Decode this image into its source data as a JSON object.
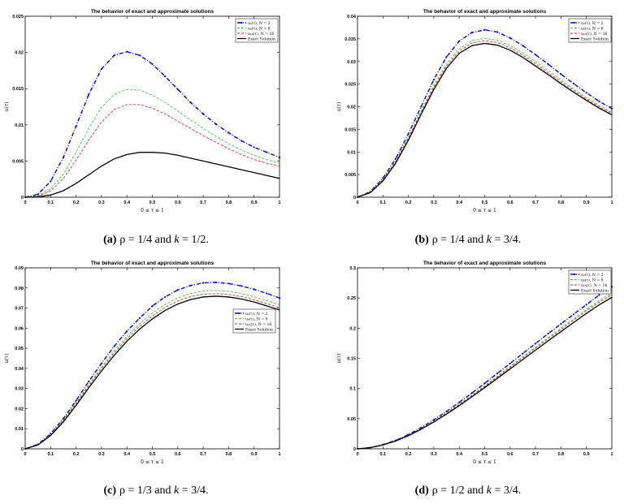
{
  "figure": {
    "captions": [
      {
        "label": "(a)",
        "text_pre": "ρ = 1/4 and ",
        "k_sym": "k",
        "text_post": " = 1/2."
      },
      {
        "label": "(b)",
        "text_pre": "ρ = 1/4 and ",
        "k_sym": "k",
        "text_post": " = 3/4."
      },
      {
        "label": "(c)",
        "text_pre": "ρ = 1/3 and ",
        "k_sym": "k",
        "text_post": " = 3/4."
      },
      {
        "label": "(d)",
        "text_pre": "ρ = 1/2 and ",
        "k_sym": "k",
        "text_post": " = 3/4."
      }
    ]
  },
  "chart_data": [
    {
      "type": "line",
      "title": "The behavior of exact and approximate solutions",
      "xlabel": "0 ≤ τ ≤ 1",
      "ylabel": "u(τ)",
      "xlim": [
        0,
        1
      ],
      "ylim": [
        0,
        0.025
      ],
      "xticks": [
        "0",
        "0.1",
        "0.2",
        "0.3",
        "0.4",
        "0.5",
        "0.6",
        "0.7",
        "0.8",
        "0.9",
        "1"
      ],
      "yticks": [
        "0",
        "0.005",
        "0.01",
        "0.015",
        "0.02",
        "0.025"
      ],
      "legend_position": "top-right",
      "x": [
        0,
        0.05,
        0.1,
        0.15,
        0.2,
        0.25,
        0.3,
        0.35,
        0.4,
        0.45,
        0.5,
        0.55,
        0.6,
        0.65,
        0.7,
        0.75,
        0.8,
        0.85,
        0.9,
        0.95,
        1
      ],
      "series": [
        {
          "name": "u₂(τ), N = 2",
          "color": "#0000ee",
          "style": "dashdot-marker",
          "values": [
            0,
            0.0004,
            0.0022,
            0.0055,
            0.0098,
            0.0142,
            0.0177,
            0.0196,
            0.0201,
            0.0196,
            0.0184,
            0.0167,
            0.0149,
            0.0131,
            0.0115,
            0.0101,
            0.0089,
            0.0078,
            0.0069,
            0.0062,
            0.0055
          ]
        },
        {
          "name": "u₈(τ), N = 8",
          "color": "#33cc33",
          "style": "dashed",
          "values": [
            0,
            0.0002,
            0.0012,
            0.0032,
            0.0062,
            0.0095,
            0.0124,
            0.0142,
            0.0149,
            0.0148,
            0.0141,
            0.0131,
            0.0119,
            0.0107,
            0.0095,
            0.0084,
            0.0074,
            0.0065,
            0.0058,
            0.0052,
            0.0047
          ]
        },
        {
          "name": "u₁₆(τ), N = 16",
          "color": "#ee2222",
          "style": "dashed",
          "values": [
            0,
            0.0001,
            0.0009,
            0.0026,
            0.0051,
            0.0079,
            0.0104,
            0.0121,
            0.0128,
            0.0128,
            0.0123,
            0.0115,
            0.0105,
            0.0095,
            0.0085,
            0.0076,
            0.0067,
            0.0059,
            0.0052,
            0.0047,
            0.0043
          ]
        },
        {
          "name": "Exact Solution",
          "color": "#000000",
          "style": "solid",
          "values": [
            0,
            5e-05,
            0.0003,
            0.0009,
            0.0019,
            0.0031,
            0.0043,
            0.0053,
            0.0059,
            0.0062,
            0.0062,
            0.0061,
            0.0058,
            0.0054,
            0.005,
            0.0046,
            0.0042,
            0.0038,
            0.0034,
            0.003,
            0.0026
          ]
        }
      ]
    },
    {
      "type": "line",
      "title": "The behavior of exact and approximate solutions",
      "xlabel": "0 ≤ τ ≤ 1",
      "ylabel": "u(τ)",
      "xlim": [
        0,
        1
      ],
      "ylim": [
        0,
        0.04
      ],
      "xticks": [
        "0",
        "0.1",
        "0.2",
        "0.3",
        "0.4",
        "0.5",
        "0.6",
        "0.7",
        "0.8",
        "0.9",
        "1"
      ],
      "yticks": [
        "0",
        "0.005",
        "0.01",
        "0.015",
        "0.02",
        "0.025",
        "0.03",
        "0.035",
        "0.04"
      ],
      "legend_position": "top-right",
      "x": [
        0,
        0.05,
        0.1,
        0.15,
        0.2,
        0.25,
        0.3,
        0.35,
        0.4,
        0.45,
        0.5,
        0.55,
        0.6,
        0.65,
        0.7,
        0.75,
        0.8,
        0.85,
        0.9,
        0.95,
        1
      ],
      "series": [
        {
          "name": "u₂(τ), N = 2",
          "color": "#0000ee",
          "style": "dashdot-marker",
          "values": [
            0,
            0.0012,
            0.0042,
            0.0085,
            0.014,
            0.02,
            0.026,
            0.031,
            0.0345,
            0.0364,
            0.037,
            0.0365,
            0.0352,
            0.0335,
            0.0315,
            0.0294,
            0.0272,
            0.0251,
            0.0231,
            0.0212,
            0.0196
          ]
        },
        {
          "name": "u₈(τ), N = 8",
          "color": "#33cc33",
          "style": "dashed",
          "values": [
            0,
            0.0011,
            0.0039,
            0.008,
            0.0132,
            0.019,
            0.0247,
            0.0295,
            0.0328,
            0.0346,
            0.0351,
            0.0347,
            0.0335,
            0.0319,
            0.03,
            0.028,
            0.0259,
            0.0239,
            0.022,
            0.0203,
            0.0188
          ]
        },
        {
          "name": "u₁₆(τ), N = 16",
          "color": "#ee2222",
          "style": "dashed",
          "values": [
            0,
            0.0011,
            0.0038,
            0.0078,
            0.013,
            0.0187,
            0.0243,
            0.029,
            0.0323,
            0.0341,
            0.0346,
            0.0342,
            0.033,
            0.0314,
            0.0295,
            0.0275,
            0.0255,
            0.0236,
            0.0217,
            0.02,
            0.0185
          ]
        },
        {
          "name": "Exact Solution",
          "color": "#000000",
          "style": "solid",
          "values": [
            0,
            0.001,
            0.0036,
            0.0075,
            0.0126,
            0.0183,
            0.0238,
            0.0285,
            0.0318,
            0.0335,
            0.034,
            0.0336,
            0.0325,
            0.0309,
            0.029,
            0.0271,
            0.0251,
            0.0232,
            0.0214,
            0.0197,
            0.0182
          ]
        }
      ]
    },
    {
      "type": "line",
      "title": "The behavior of exact and approximate solutions",
      "xlabel": "0 ≤ τ ≤ 1",
      "ylabel": "u(τ)",
      "xlim": [
        0,
        1
      ],
      "ylim": [
        0,
        0.09
      ],
      "xticks": [
        "0",
        "0.1",
        "0.2",
        "0.3",
        "0.4",
        "0.5",
        "0.6",
        "0.7",
        "0.8",
        "0.9",
        "1"
      ],
      "yticks": [
        "0",
        "0.01",
        "0.02",
        "0.03",
        "0.04",
        "0.05",
        "0.06",
        "0.07",
        "0.08",
        "0.09"
      ],
      "legend_position": "center-right",
      "x": [
        0,
        0.05,
        0.1,
        0.15,
        0.2,
        0.25,
        0.3,
        0.35,
        0.4,
        0.45,
        0.5,
        0.55,
        0.6,
        0.65,
        0.7,
        0.75,
        0.8,
        0.85,
        0.9,
        0.95,
        1
      ],
      "series": [
        {
          "name": "u₂(τ), N = 2",
          "color": "#0000ee",
          "style": "dashdot-marker",
          "values": [
            0,
            0.0022,
            0.0075,
            0.015,
            0.024,
            0.0335,
            0.0425,
            0.051,
            0.0585,
            0.065,
            0.071,
            0.0755,
            0.079,
            0.0812,
            0.0825,
            0.0828,
            0.0822,
            0.081,
            0.0793,
            0.0773,
            0.075
          ]
        },
        {
          "name": "u₈(τ), N = 8",
          "color": "#33cc33",
          "style": "dashed",
          "values": [
            0,
            0.0021,
            0.0071,
            0.0143,
            0.0229,
            0.032,
            0.0407,
            0.0488,
            0.056,
            0.0622,
            0.0675,
            0.0718,
            0.075,
            0.0772,
            0.0785,
            0.0788,
            0.0783,
            0.0772,
            0.0756,
            0.0737,
            0.0716
          ]
        },
        {
          "name": "u₁₆(τ), N = 16",
          "color": "#ee2222",
          "style": "dashed",
          "values": [
            0,
            0.002,
            0.0069,
            0.0139,
            0.0223,
            0.0312,
            0.0398,
            0.0477,
            0.0548,
            0.0609,
            0.0661,
            0.0703,
            0.0735,
            0.0757,
            0.0769,
            0.0772,
            0.0767,
            0.0757,
            0.0741,
            0.0722,
            0.0702
          ]
        },
        {
          "name": "Exact Solution",
          "color": "#000000",
          "style": "solid",
          "values": [
            0,
            0.0019,
            0.0066,
            0.0134,
            0.0216,
            0.0303,
            0.0387,
            0.0465,
            0.0535,
            0.0595,
            0.0646,
            0.0688,
            0.072,
            0.0742,
            0.0755,
            0.0759,
            0.0755,
            0.0745,
            0.073,
            0.0711,
            0.069
          ]
        }
      ]
    },
    {
      "type": "line",
      "title": "The behavior of exact and approximate solutions",
      "xlabel": "0 ≤ τ ≤ 1",
      "ylabel": "u(τ)",
      "xlim": [
        0,
        1
      ],
      "ylim": [
        0,
        0.3
      ],
      "xticks": [
        "0",
        "0.1",
        "0.2",
        "0.3",
        "0.4",
        "0.5",
        "0.6",
        "0.7",
        "0.8",
        "0.9",
        "1"
      ],
      "yticks": [
        "0",
        "0.05",
        "0.1",
        "0.15",
        "0.2",
        "0.25",
        "0.3"
      ],
      "legend_position": "top-right",
      "x": [
        0,
        0.05,
        0.1,
        0.15,
        0.2,
        0.25,
        0.3,
        0.35,
        0.4,
        0.45,
        0.5,
        0.55,
        0.6,
        0.65,
        0.7,
        0.75,
        0.8,
        0.85,
        0.9,
        0.95,
        1
      ],
      "series": [
        {
          "name": "u₂(τ), N = 2",
          "color": "#0000ee",
          "style": "dashdot-marker",
          "values": [
            0,
            0.002,
            0.007,
            0.014,
            0.0235,
            0.035,
            0.048,
            0.062,
            0.077,
            0.0925,
            0.1085,
            0.125,
            0.1415,
            0.158,
            0.1745,
            0.191,
            0.207,
            0.223,
            0.239,
            0.255,
            0.269
          ]
        },
        {
          "name": "u₈(τ), N = 8",
          "color": "#33cc33",
          "style": "dashed",
          "values": [
            0,
            0.0019,
            0.0067,
            0.0134,
            0.0225,
            0.0335,
            0.046,
            0.0595,
            0.074,
            0.089,
            0.1045,
            0.1205,
            0.1365,
            0.1525,
            0.1685,
            0.1845,
            0.2,
            0.2155,
            0.231,
            0.2455,
            0.258
          ]
        },
        {
          "name": "u₁₆(τ), N = 16",
          "color": "#ee2222",
          "style": "dashed",
          "values": [
            0,
            0.0019,
            0.0066,
            0.0132,
            0.0222,
            0.0331,
            0.0455,
            0.0588,
            0.0731,
            0.088,
            0.1033,
            0.1191,
            0.135,
            0.1508,
            0.1667,
            0.1825,
            0.1979,
            0.2133,
            0.2286,
            0.243,
            0.2555
          ]
        },
        {
          "name": "Exact Solution",
          "color": "#000000",
          "style": "solid",
          "values": [
            0,
            0.0018,
            0.0064,
            0.0129,
            0.0217,
            0.0324,
            0.0445,
            0.0576,
            0.0716,
            0.0863,
            0.1013,
            0.1168,
            0.1324,
            0.148,
            0.1636,
            0.1791,
            0.1943,
            0.2094,
            0.2244,
            0.2386,
            0.251
          ]
        }
      ]
    }
  ]
}
